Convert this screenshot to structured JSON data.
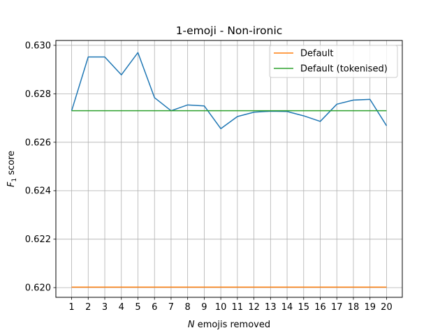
{
  "chart_data": {
    "type": "line",
    "title": "1-emoji - Non-ironic",
    "xlabel": {
      "italic": "N",
      "rest": " emojis removed"
    },
    "ylabel": {
      "main": "F",
      "subscript": "1",
      "rest": " score"
    },
    "x": [
      1,
      2,
      3,
      4,
      5,
      6,
      7,
      8,
      9,
      10,
      11,
      12,
      13,
      14,
      15,
      16,
      17,
      18,
      19,
      20
    ],
    "xlim": [
      0.05,
      20.95
    ],
    "ylim": [
      0.6196,
      0.6302
    ],
    "yticks": [
      0.62,
      0.622,
      0.624,
      0.626,
      0.628,
      0.63
    ],
    "ytick_labels": [
      "0.620",
      "0.622",
      "0.624",
      "0.626",
      "0.628",
      "0.630"
    ],
    "grid": true,
    "legend_position": "top-right",
    "series": [
      {
        "name": "",
        "color": "#1f77b4",
        "in_legend": false,
        "values": [
          0.6273,
          0.62952,
          0.62952,
          0.62878,
          0.6297,
          0.62784,
          0.6273,
          0.62754,
          0.6275,
          0.62656,
          0.62706,
          0.62724,
          0.62728,
          0.62727,
          0.62709,
          0.62686,
          0.62757,
          0.62774,
          0.62777,
          0.62668
        ]
      },
      {
        "name": "Default",
        "color": "#ff7f0e",
        "in_legend": true,
        "values": [
          0.62002,
          0.62002,
          0.62002,
          0.62002,
          0.62002,
          0.62002,
          0.62002,
          0.62002,
          0.62002,
          0.62002,
          0.62002,
          0.62002,
          0.62002,
          0.62002,
          0.62002,
          0.62002,
          0.62002,
          0.62002,
          0.62002,
          0.62002
        ]
      },
      {
        "name": "Default (tokenised)",
        "color": "#2ca02c",
        "in_legend": true,
        "values": [
          0.6273,
          0.6273,
          0.6273,
          0.6273,
          0.6273,
          0.6273,
          0.6273,
          0.6273,
          0.6273,
          0.6273,
          0.6273,
          0.6273,
          0.6273,
          0.6273,
          0.6273,
          0.6273,
          0.6273,
          0.6273,
          0.6273,
          0.6273
        ]
      }
    ]
  }
}
